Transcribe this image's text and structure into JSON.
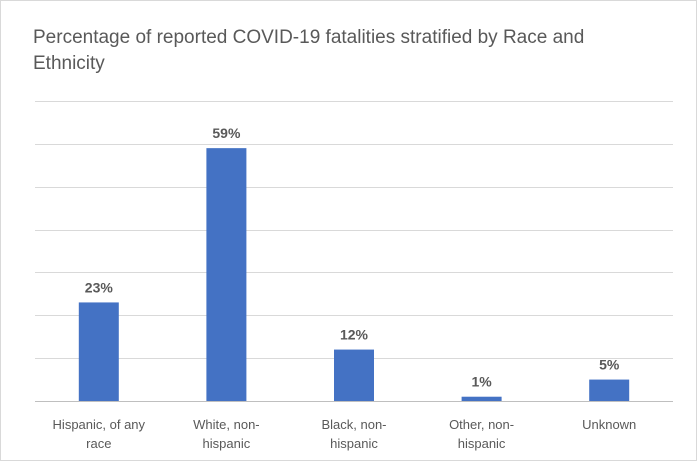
{
  "chart_data": {
    "type": "bar",
    "title": "Percentage of reported COVID-19 fatalities stratified by Race and Ethnicity",
    "categories": [
      [
        "Hispanic, of any",
        "race"
      ],
      [
        "White, non-",
        "hispanic"
      ],
      [
        "Black, non-",
        "hispanic"
      ],
      [
        "Other, non-",
        "hispanic"
      ],
      [
        "Unknown"
      ]
    ],
    "values": [
      23,
      59,
      12,
      1,
      5
    ],
    "data_labels": [
      "23%",
      "59%",
      "12%",
      "1%",
      "5%"
    ],
    "ylim": [
      0,
      70
    ],
    "ytick_step": 10,
    "xlabel": "",
    "ylabel": "",
    "grid": true,
    "bar_color": "#4472c4"
  }
}
